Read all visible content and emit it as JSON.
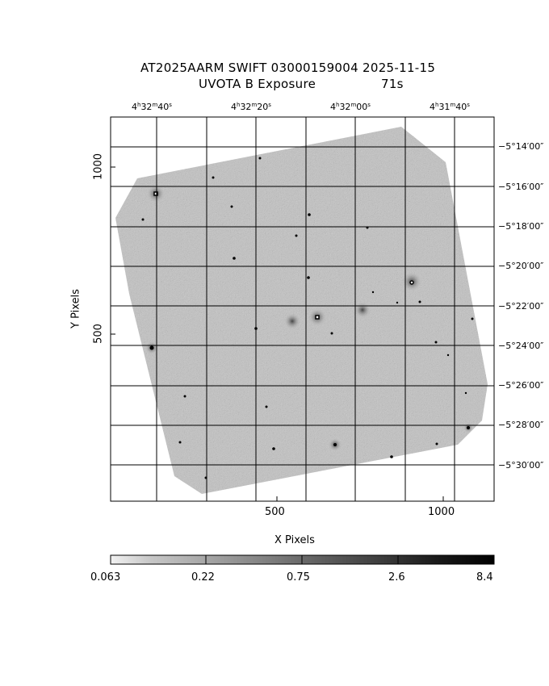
{
  "title": {
    "line1": "AT2025AARM SWIFT 03000159004 2025-11-15",
    "filter": "UVOTA B Exposure",
    "exposure": "71s"
  },
  "axes": {
    "xlabel": "X Pixels",
    "ylabel": "Y Pixels",
    "x_ticks": [
      "500",
      "1000"
    ],
    "y_ticks": [
      "1000",
      "500"
    ]
  },
  "ra_ticks": [
    {
      "h": "4",
      "m": "32",
      "s": "40"
    },
    {
      "h": "4",
      "m": "32",
      "s": "20"
    },
    {
      "h": "4",
      "m": "32",
      "s": "00"
    },
    {
      "h": "4",
      "m": "31",
      "s": "40"
    }
  ],
  "dec_ticks": [
    "−5°14′00″",
    "−5°16′00″",
    "−5°18′00″",
    "−5°20′00″",
    "−5°22′00″",
    "−5°24′00″",
    "−5°26′00″",
    "−5°28′00″",
    "−5°30′00″"
  ],
  "colorbar": {
    "labels": [
      "0.063",
      "0.22",
      "0.75",
      "2.6",
      "8.4"
    ]
  }
}
